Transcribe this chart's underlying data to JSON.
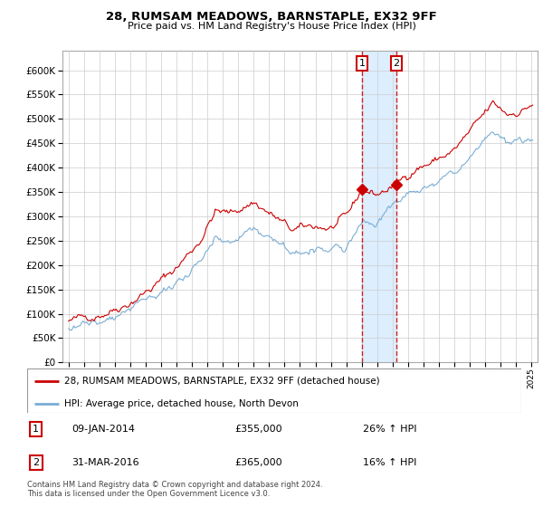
{
  "title": "28, RUMSAM MEADOWS, BARNSTAPLE, EX32 9FF",
  "subtitle": "Price paid vs. HM Land Registry's House Price Index (HPI)",
  "legend_line1": "28, RUMSAM MEADOWS, BARNSTAPLE, EX32 9FF (detached house)",
  "legend_line2": "HPI: Average price, detached house, North Devon",
  "footnote": "Contains HM Land Registry data © Crown copyright and database right 2024.\nThis data is licensed under the Open Government Licence v3.0.",
  "sale1_date": "09-JAN-2014",
  "sale1_price": "£355,000",
  "sale1_hpi": "26% ↑ HPI",
  "sale1_x": 2014.025,
  "sale1_y": 355000,
  "sale2_date": "31-MAR-2016",
  "sale2_price": "£365,000",
  "sale2_hpi": "16% ↑ HPI",
  "sale2_x": 2016.25,
  "sale2_y": 365000,
  "red_color": "#cc0000",
  "blue_color": "#7aadd4",
  "shade_color": "#ddeeff",
  "background_color": "#ffffff",
  "grid_color": "#cccccc",
  "ylim": [
    0,
    640000
  ],
  "yticks": [
    0,
    50000,
    100000,
    150000,
    200000,
    250000,
    300000,
    350000,
    400000,
    450000,
    500000,
    550000,
    600000
  ],
  "xlim_start": 1994.6,
  "xlim_end": 2025.4
}
